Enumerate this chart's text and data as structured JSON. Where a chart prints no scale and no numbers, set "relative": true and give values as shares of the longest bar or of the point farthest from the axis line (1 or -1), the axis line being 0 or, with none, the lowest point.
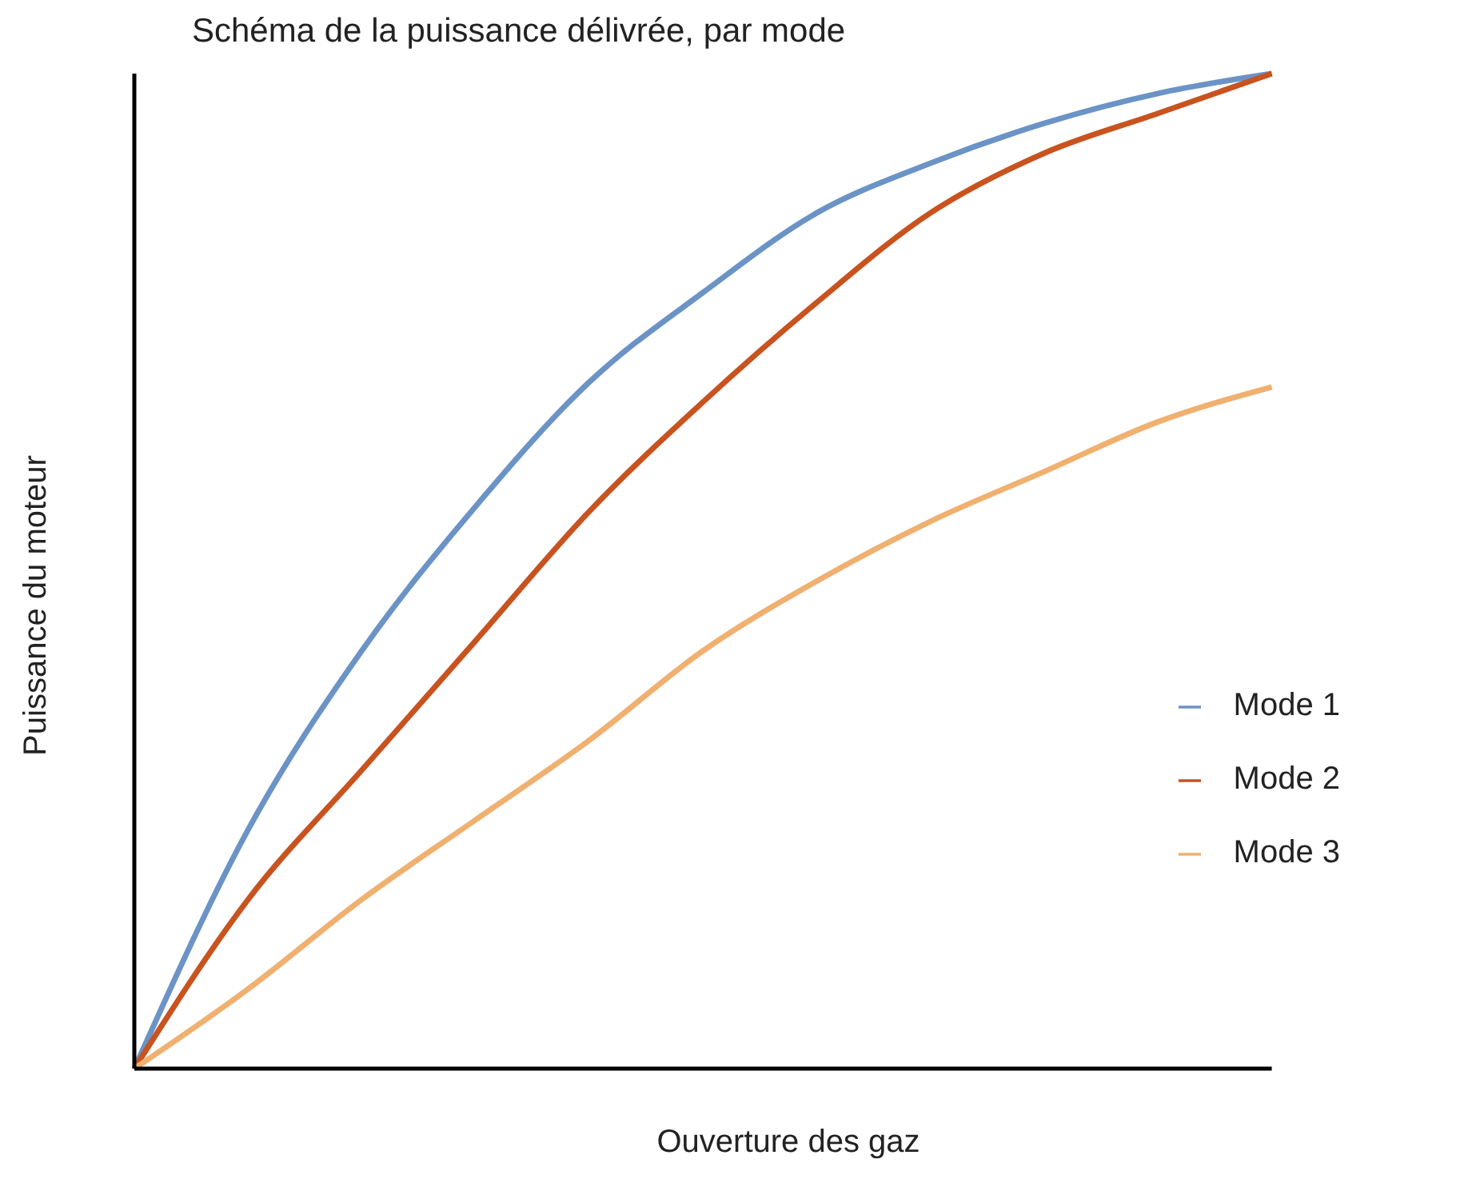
{
  "chart_data": {
    "type": "line",
    "title": "Schéma de la puissance délivrée, par mode",
    "xlabel": "Ouverture des gaz",
    "ylabel": "Puissance du moteur",
    "relative": true,
    "tick_labels": false,
    "legend": "right",
    "marker": "none",
    "line_style": "solid",
    "categories": [
      null,
      null,
      null,
      null,
      null,
      null,
      null,
      null,
      null,
      null,
      null
    ],
    "series": [
      {
        "name": "Mode 1",
        "color": "#6b93c6",
        "values": [
          0,
          0.24,
          0.42,
          0.565,
          0.69,
          0.78,
          0.86,
          0.91,
          0.95,
          0.98,
          1
        ]
      },
      {
        "name": "Mode 2",
        "color": "#c8531f",
        "values": [
          0,
          0.17,
          0.3,
          0.43,
          0.56,
          0.67,
          0.77,
          0.86,
          0.92,
          0.96,
          1
        ]
      },
      {
        "name": "Mode 3",
        "color": "#f0b070",
        "values": [
          0,
          0.08,
          0.17,
          0.25,
          0.33,
          0.42,
          0.49,
          0.55,
          0.6,
          0.65,
          0.685
        ]
      }
    ]
  }
}
